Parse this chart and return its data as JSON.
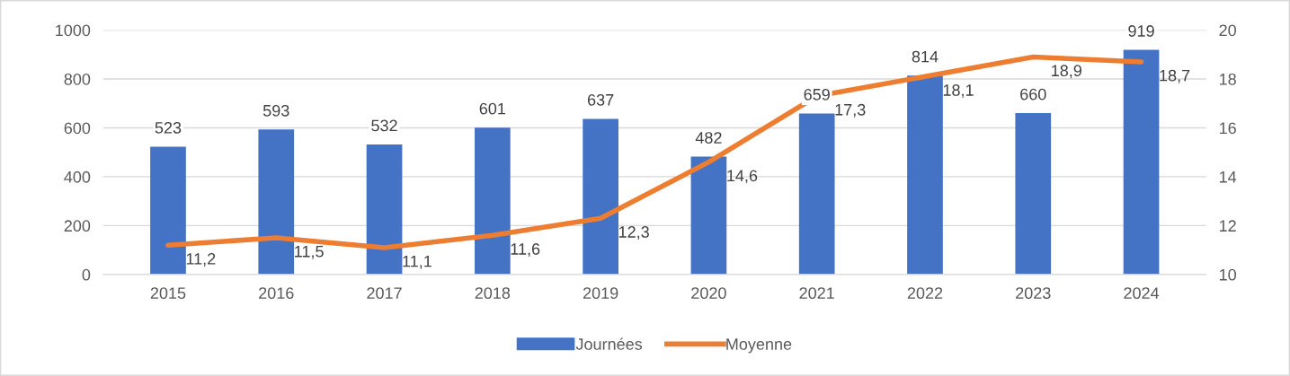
{
  "chart_data": {
    "type": "bar",
    "categories": [
      "2015",
      "2016",
      "2017",
      "2018",
      "2019",
      "2020",
      "2021",
      "2022",
      "2023",
      "2024"
    ],
    "series": [
      {
        "name": "Journées",
        "color": "#4472c4",
        "values": [
          523,
          593,
          532,
          601,
          637,
          482,
          659,
          814,
          660,
          919
        ],
        "value_labels": [
          "523",
          "593",
          "532",
          "601",
          "637",
          "482",
          "659",
          "814",
          "660",
          "919"
        ]
      },
      {
        "name": "Moyenne",
        "type": "line",
        "axis": "y2",
        "color": "#ed7d31",
        "values": [
          11.2,
          11.5,
          11.1,
          11.6,
          12.3,
          14.6,
          17.3,
          18.1,
          18.9,
          18.7
        ],
        "value_labels": [
          "11,2",
          "11,5",
          "11,1",
          "11,6",
          "12,3",
          "14,6",
          "17,3",
          "18,1",
          "18,9",
          "18,7"
        ]
      }
    ],
    "ylim": [
      0,
      1000
    ],
    "yticks": [
      0,
      200,
      400,
      600,
      800,
      1000
    ],
    "y2lim": [
      10,
      20
    ],
    "y2ticks": [
      10,
      12,
      14,
      16,
      18,
      20
    ],
    "grid": "y",
    "legend": "bottom",
    "marker": "none",
    "line_style": "solid"
  }
}
